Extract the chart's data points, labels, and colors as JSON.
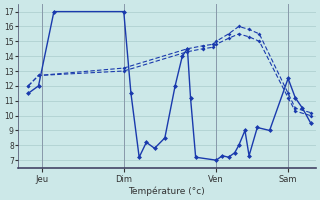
{
  "title": "Température (°c)",
  "background_color": "#cce8e8",
  "grid_color": "#aacccc",
  "line_color": "#1a3aad",
  "ylim": [
    6.5,
    17.5
  ],
  "yticks": [
    7,
    8,
    9,
    10,
    11,
    12,
    13,
    14,
    15,
    16,
    17
  ],
  "xlim": [
    -5,
    285
  ],
  "day_positions": [
    18,
    98,
    188,
    258
  ],
  "day_labels": [
    "Jeu",
    "Dim",
    "Ven",
    "Sam"
  ],
  "vline_positions": [
    18,
    98,
    188,
    258
  ],
  "series1_x": [
    5,
    15,
    30,
    98,
    105,
    113,
    120,
    128,
    138,
    148,
    155,
    160,
    163,
    168,
    188,
    194,
    200,
    206,
    210,
    216,
    220,
    228,
    240,
    258,
    265,
    272,
    280
  ],
  "series1_y": [
    11.5,
    12.0,
    17.0,
    17.0,
    11.5,
    7.2,
    8.2,
    7.8,
    8.5,
    12.0,
    14.0,
    14.5,
    11.2,
    7.2,
    7.0,
    7.3,
    7.2,
    7.5,
    8.0,
    9.0,
    7.3,
    9.2,
    9.0,
    12.5,
    11.2,
    10.5,
    9.5
  ],
  "series2_x": [
    5,
    15,
    98,
    160,
    175,
    185,
    188,
    200,
    210,
    220,
    230,
    258,
    265,
    280
  ],
  "series2_y": [
    12.0,
    12.7,
    13.2,
    14.5,
    14.7,
    14.8,
    15.0,
    15.5,
    16.0,
    15.8,
    15.5,
    11.5,
    10.5,
    10.2
  ],
  "series3_x": [
    5,
    15,
    98,
    160,
    175,
    185,
    188,
    200,
    210,
    220,
    230,
    258,
    265,
    280
  ],
  "series3_y": [
    12.0,
    12.7,
    13.0,
    14.3,
    14.5,
    14.6,
    14.8,
    15.2,
    15.5,
    15.3,
    15.0,
    11.2,
    10.3,
    10.0
  ]
}
